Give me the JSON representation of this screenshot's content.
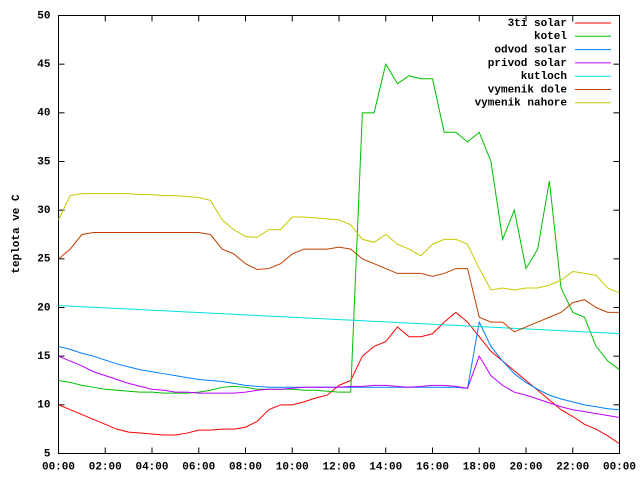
{
  "chart_data": {
    "type": "line",
    "ylabel": "teplota ve C",
    "x": [
      0,
      0.5,
      1,
      1.5,
      2,
      2.5,
      3,
      3.5,
      4,
      4.5,
      5,
      5.5,
      6,
      6.5,
      7,
      7.5,
      8,
      8.5,
      9,
      9.5,
      10,
      10.5,
      11,
      11.5,
      12,
      12.5,
      13,
      13.5,
      14,
      14.5,
      15,
      15.5,
      16,
      16.5,
      17,
      17.5,
      18,
      18.5,
      19,
      19.5,
      20,
      20.5,
      21,
      21.5,
      22,
      22.5,
      23,
      23.5,
      24
    ],
    "xlim": [
      0,
      24
    ],
    "xticks": [
      {
        "value": 0,
        "label": "00:00"
      },
      {
        "value": 2,
        "label": "02:00"
      },
      {
        "value": 4,
        "label": "04:00"
      },
      {
        "value": 6,
        "label": "06:00"
      },
      {
        "value": 8,
        "label": "08:00"
      },
      {
        "value": 10,
        "label": "10:00"
      },
      {
        "value": 12,
        "label": "12:00"
      },
      {
        "value": 14,
        "label": "14:00"
      },
      {
        "value": 16,
        "label": "16:00"
      },
      {
        "value": 18,
        "label": "18:00"
      },
      {
        "value": 20,
        "label": "20:00"
      },
      {
        "value": 22,
        "label": "22:00"
      },
      {
        "value": 24,
        "label": "00:00"
      }
    ],
    "ylim": [
      5,
      50
    ],
    "yticks": [
      5,
      10,
      15,
      20,
      25,
      30,
      35,
      40,
      45,
      50
    ],
    "legend": "top-right",
    "series": [
      {
        "name": "3ti solar",
        "color": "#ff0000",
        "values": [
          10,
          9.5,
          9,
          8.5,
          8,
          7.5,
          7.2,
          7.1,
          7,
          6.9,
          6.9,
          7.1,
          7.4,
          7.4,
          7.5,
          7.5,
          7.7,
          8.3,
          9.5,
          10,
          10,
          10.3,
          10.7,
          11,
          12,
          12.5,
          15,
          16,
          16.5,
          18,
          17,
          17,
          17.3,
          18.5,
          19.5,
          18.5,
          17,
          15.5,
          14.5,
          13.5,
          12.5,
          11.5,
          10.5,
          9.5,
          8.8,
          8,
          7.5,
          6.8,
          6
        ]
      },
      {
        "name": "kotel",
        "color": "#00c000",
        "values": [
          12.5,
          12.3,
          12,
          11.8,
          11.6,
          11.5,
          11.4,
          11.3,
          11.3,
          11.2,
          11.2,
          11.2,
          11.3,
          11.5,
          11.8,
          11.9,
          11.8,
          11.6,
          11.6,
          11.6,
          11.6,
          11.5,
          11.5,
          11.4,
          11.3,
          11.3,
          40,
          40,
          45,
          43,
          43.8,
          43.5,
          43.5,
          38,
          38,
          37,
          38,
          35,
          27,
          30,
          24,
          26,
          33,
          22,
          19.5,
          19,
          16,
          14.5,
          13.6
        ]
      },
      {
        "name": "odvod solar",
        "color": "#0080ff",
        "values": [
          16,
          15.7,
          15.3,
          15,
          14.6,
          14.2,
          13.9,
          13.6,
          13.4,
          13.2,
          13,
          12.8,
          12.6,
          12.5,
          12.4,
          12.2,
          12,
          11.9,
          11.8,
          11.8,
          11.8,
          11.8,
          11.8,
          11.8,
          11.8,
          11.8,
          11.8,
          11.8,
          11.8,
          11.8,
          11.8,
          11.8,
          11.8,
          11.8,
          11.8,
          11.7,
          18.5,
          16,
          14.5,
          13.2,
          12.3,
          11.6,
          11,
          10.6,
          10.3,
          10,
          9.8,
          9.6,
          9.5
        ]
      },
      {
        "name": "privod solar",
        "color": "#c000ff",
        "values": [
          15,
          14.5,
          14,
          13.4,
          13,
          12.6,
          12.2,
          11.9,
          11.6,
          11.5,
          11.3,
          11.3,
          11.2,
          11.2,
          11.2,
          11.2,
          11.3,
          11.5,
          11.6,
          11.6,
          11.7,
          11.8,
          11.8,
          11.8,
          11.8,
          11.9,
          11.9,
          12,
          12,
          11.9,
          11.8,
          11.9,
          12,
          12,
          11.9,
          11.7,
          15,
          13,
          12,
          11.3,
          11,
          10.6,
          10.2,
          9.8,
          9.5,
          9.3,
          9.1,
          8.9,
          8.7
        ]
      },
      {
        "name": "kutloch",
        "color": "#00e0e0",
        "values": [
          20.2,
          20.14,
          20.08,
          20.02,
          19.96,
          19.9,
          19.84,
          19.78,
          19.72,
          19.66,
          19.6,
          19.54,
          19.48,
          19.42,
          19.36,
          19.3,
          19.24,
          19.18,
          19.12,
          19.06,
          19,
          18.94,
          18.88,
          18.82,
          18.76,
          18.7,
          18.64,
          18.58,
          18.52,
          18.46,
          18.4,
          18.34,
          18.28,
          18.22,
          18.16,
          18.1,
          18.04,
          17.98,
          17.92,
          17.86,
          17.8,
          17.74,
          17.68,
          17.62,
          17.56,
          17.5,
          17.44,
          17.38,
          17.32
        ]
      },
      {
        "name": "vymenik dole",
        "color": "#c04000",
        "values": [
          25,
          26,
          27.5,
          27.7,
          27.7,
          27.7,
          27.7,
          27.7,
          27.7,
          27.7,
          27.7,
          27.7,
          27.7,
          27.5,
          26,
          25.5,
          24.5,
          23.9,
          24,
          24.5,
          25.5,
          26,
          26,
          26,
          26.2,
          26,
          25,
          24.5,
          24,
          23.5,
          23.5,
          23.5,
          23.2,
          23.5,
          24,
          24,
          19,
          18.5,
          18.5,
          17.5,
          18,
          18.5,
          19,
          19.5,
          20.5,
          20.8,
          20,
          19.5,
          19.5
        ]
      },
      {
        "name": "vymenik nahore",
        "color": "#c8c800",
        "values": [
          29,
          31.5,
          31.7,
          31.7,
          31.7,
          31.7,
          31.7,
          31.6,
          31.6,
          31.5,
          31.5,
          31.4,
          31.3,
          31,
          29,
          28,
          27.3,
          27.2,
          28,
          28,
          29.3,
          29.3,
          29.2,
          29.1,
          29,
          28.5,
          27,
          26.7,
          27.5,
          26.5,
          26,
          25.3,
          26.5,
          27,
          27,
          26.5,
          24,
          21.8,
          22,
          21.8,
          22,
          22,
          22.3,
          22.8,
          23.7,
          23.5,
          23.3,
          22,
          21.5
        ]
      }
    ]
  }
}
